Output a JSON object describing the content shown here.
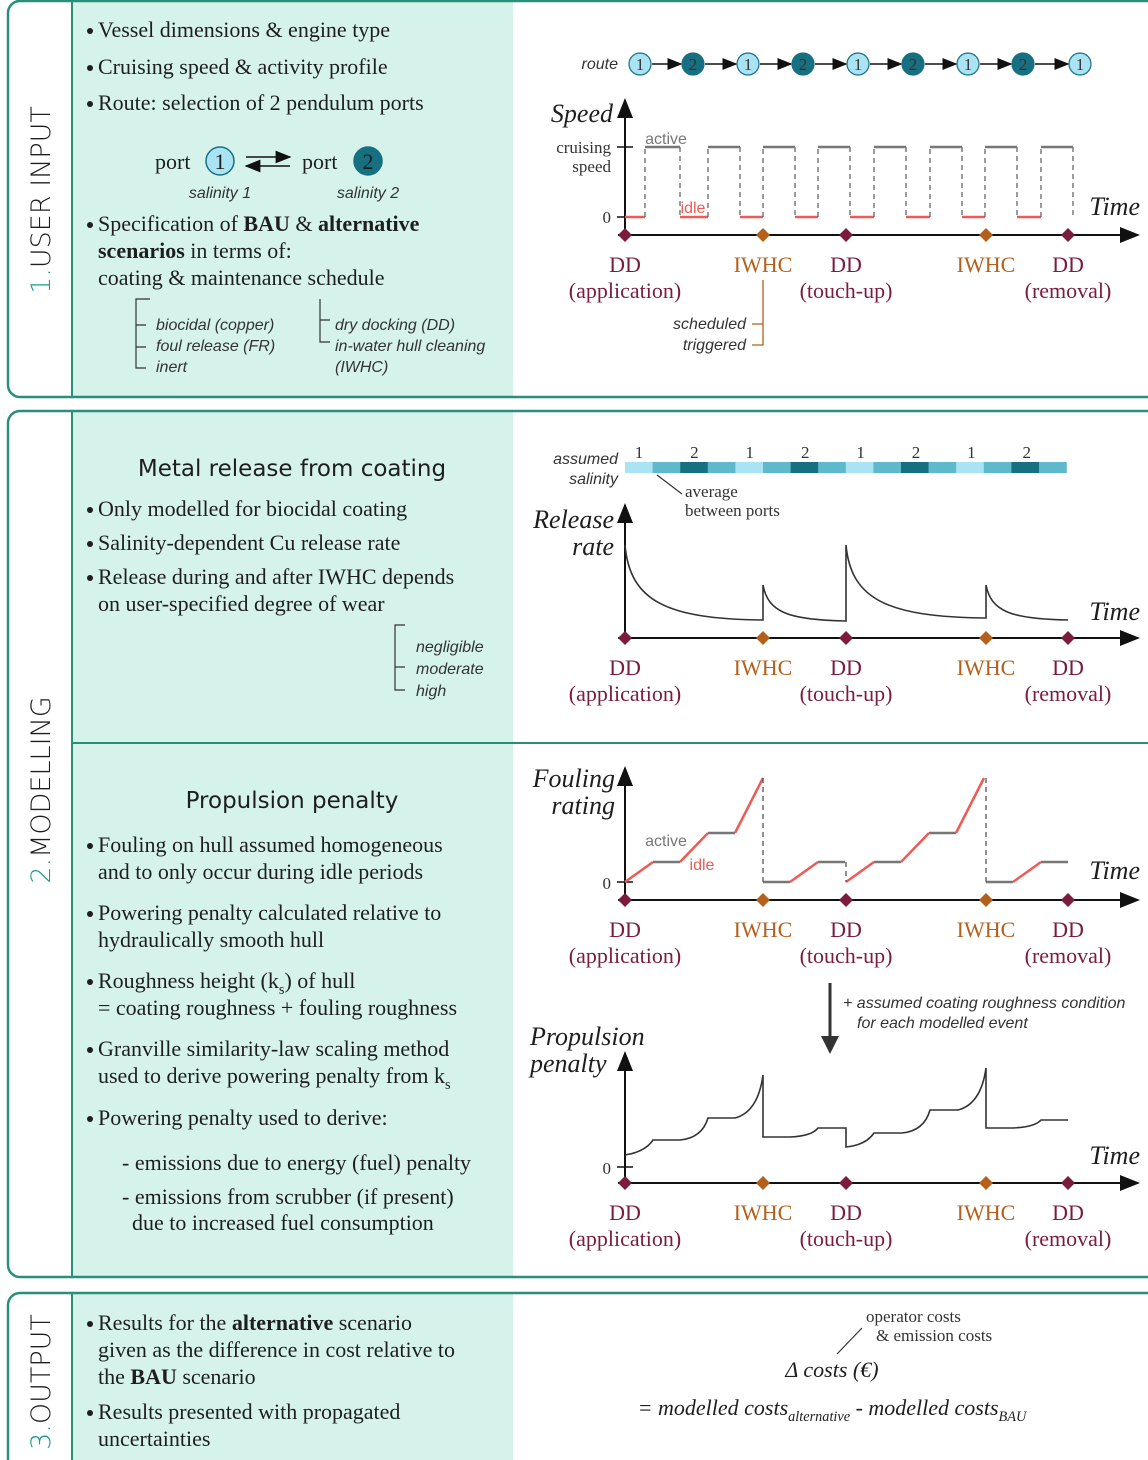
{
  "user_input": {
    "label": {
      "number": "1.",
      "title": "USER INPUT"
    },
    "bullets": [
      [
        "Vessel dimensions & engine type"
      ],
      [
        "Cruising speed & activity profile"
      ],
      [
        "Route: selection of 2 pendulum ports"
      ],
      [
        [
          "Specification of ",
          {
            "text": "BAU",
            "style": "bold"
          },
          " & ",
          {
            "text": "alternative",
            "style": "bold"
          }
        ],
        [
          {
            "text": "scenarios",
            "style": "bold"
          },
          " in terms of:"
        ],
        "coating & maintenance schedule"
      ]
    ],
    "ports": [
      {
        "word": "port",
        "number": "1",
        "salinity": "salinity 1"
      },
      {
        "word": "port",
        "number": "2",
        "salinity": "salinity 2"
      }
    ],
    "coatings": [
      "biocidal (copper)",
      "foul release (FR)",
      "inert"
    ],
    "maintenance": [
      "dry docking (DD)",
      "in-water hull cleaning",
      "(IWHC)"
    ],
    "route": {
      "label": "route",
      "ports": [
        "1",
        "2",
        "1",
        "2",
        "1",
        "2",
        "1",
        "2",
        "1"
      ]
    },
    "speed_chart": {
      "y_title": "Speed",
      "cruising": [
        "cruising",
        "speed"
      ],
      "zero": "0",
      "active": "active",
      "idle": "idle",
      "x_title": "Time",
      "iwhc_modes": [
        "scheduled",
        "triggered"
      ]
    }
  },
  "events": [
    {
      "name": "DD",
      "note": "(application)"
    },
    {
      "name": "IWHC"
    },
    {
      "name": "DD",
      "note": "(touch-up)"
    },
    {
      "name": "IWHC"
    },
    {
      "name": "DD",
      "note": "(removal)"
    }
  ],
  "modelling": {
    "label": {
      "number": "2.",
      "title": "MODELLING"
    },
    "metal": {
      "heading": "Metal release from coating",
      "bullets": [
        [
          "Only modelled for biocidal coating"
        ],
        [
          "Salinity-dependent Cu release rate"
        ],
        [
          "Release during and after IWHC depends",
          "on user-specified degree of wear"
        ]
      ],
      "wear": [
        "negligible",
        "moderate",
        "high"
      ],
      "salinity_label": [
        "assumed",
        "salinity"
      ],
      "salinity_ports": [
        "1",
        "2",
        "1",
        "2",
        "1",
        "2",
        "1",
        "2"
      ],
      "average_note": [
        "average",
        "between ports"
      ],
      "y_title": [
        "Release",
        "rate"
      ],
      "x_title": "Time"
    },
    "propulsion": {
      "heading": "Propulsion penalty",
      "bullets": [
        [
          "Fouling on hull assumed homogeneous",
          "and to only occur during idle periods"
        ],
        [
          "Powering penalty calculated relative to",
          "hydraulically smooth hull"
        ],
        [
          [
            "Roughness height (k",
            {
              "text": "s",
              "style": "subscript"
            },
            ") of hull"
          ],
          "= coating roughness + fouling roughness"
        ],
        [
          "Granville similarity-law scaling method",
          [
            "used to derive powering penalty from k",
            {
              "text": "s",
              "style": "subscript"
            }
          ]
        ],
        [
          "Powering penalty used to derive:"
        ]
      ],
      "sub_items": [
        [
          "- emissions due to energy (fuel) penalty"
        ],
        [
          "- emissions from scrubber (if present)",
          "due to increased fuel consumption"
        ]
      ],
      "fouling_y_title": [
        "Fouling",
        "rating"
      ],
      "zero": "0",
      "active": "active",
      "idle": "idle",
      "x_title": "Time",
      "arrow_note": [
        "+ assumed coating roughness condition",
        "for each modelled event"
      ],
      "penalty_y_title": [
        "Propulsion",
        "penalty"
      ]
    }
  },
  "output": {
    "label": {
      "number": "3.",
      "title": "OUTPUT"
    },
    "bullets": [
      [
        [
          "Results for the ",
          {
            "text": "alternative",
            "style": "bold"
          },
          " scenario"
        ],
        "given as the difference in cost relative to",
        [
          "the ",
          {
            "text": "BAU",
            "style": "bold"
          },
          " scenario"
        ]
      ],
      [
        "Results presented with propagated",
        "uncertainties"
      ]
    ],
    "cost_note": [
      "operator costs",
      "& emission costs"
    ],
    "delta": "Δ costs (€)",
    "formula": [
      "= modelled costs",
      {
        "text": "alternative",
        "style": "subscript"
      },
      " - modelled costs",
      {
        "text": "BAU",
        "style": "subscript"
      }
    ]
  }
}
